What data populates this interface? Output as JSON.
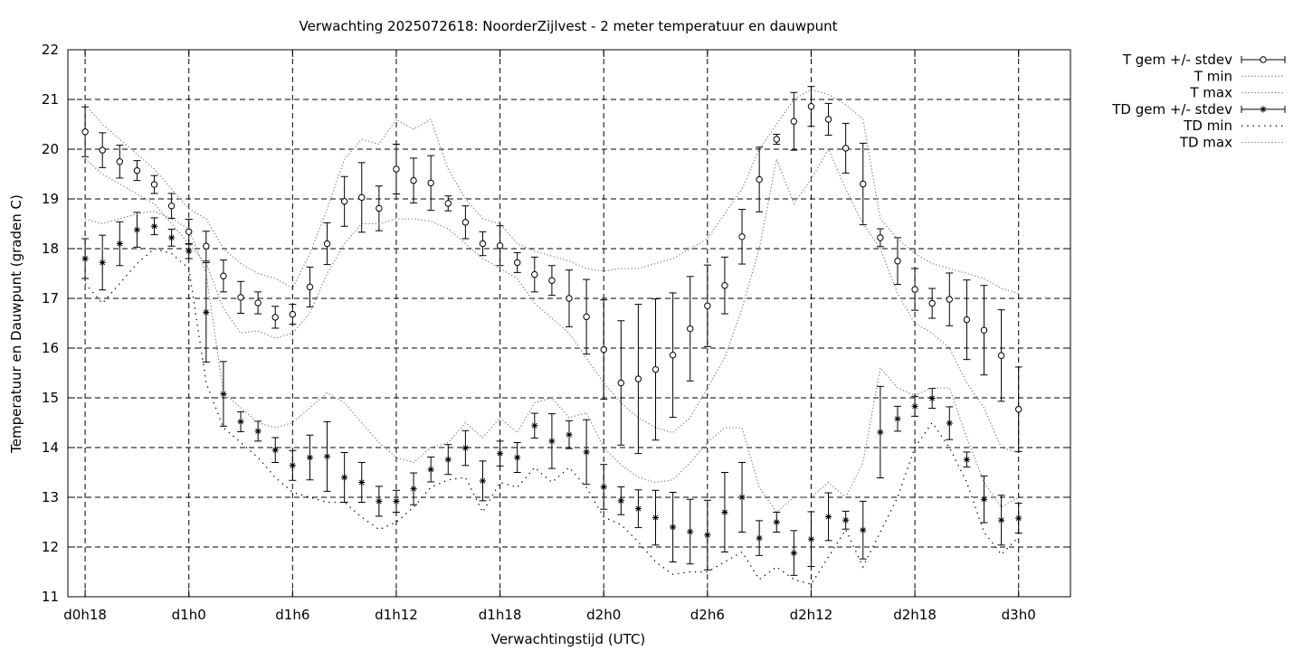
{
  "chart_data": {
    "type": "line",
    "title": "Verwachting 2025072618: NoorderZijlvest - 2 meter temperatuur en dauwpunt",
    "xlabel": "Verwachtingstijd (UTC)",
    "ylabel": "Temperatuur en Dauwpunt (graden C)",
    "xlim": [
      -1,
      57
    ],
    "ylim": [
      11,
      22
    ],
    "grid": true,
    "legend_position": "outside-top-right",
    "x_ticks": [
      {
        "x": 0,
        "label": "d0h18"
      },
      {
        "x": 6,
        "label": "d1h0"
      },
      {
        "x": 12,
        "label": "d1h6"
      },
      {
        "x": 18,
        "label": "d1h12"
      },
      {
        "x": 24,
        "label": "d1h18"
      },
      {
        "x": 30,
        "label": "d2h0"
      },
      {
        "x": 36,
        "label": "d2h6"
      },
      {
        "x": 42,
        "label": "d2h12"
      },
      {
        "x": 48,
        "label": "d2h18"
      },
      {
        "x": 54,
        "label": "d3h0"
      }
    ],
    "y_ticks": [
      11,
      12,
      13,
      14,
      15,
      16,
      17,
      18,
      19,
      20,
      21,
      22
    ],
    "series": [
      {
        "name": "T gem +/- stdev",
        "style": "errorbars-circle",
        "values": [
          20.35,
          19.98,
          19.75,
          19.57,
          19.29,
          18.86,
          18.34,
          18.05,
          17.45,
          17.02,
          16.91,
          16.62,
          16.68,
          17.23,
          18.1,
          18.95,
          19.03,
          18.81,
          19.6,
          19.37,
          19.32,
          18.91,
          18.53,
          18.1,
          18.06,
          17.72,
          17.48,
          17.36,
          17.0,
          16.63,
          15.97,
          15.3,
          15.38,
          15.57,
          15.86,
          16.39,
          16.85,
          17.26,
          18.24,
          19.39,
          20.2,
          20.56,
          20.86,
          20.6,
          20.02,
          19.3,
          18.22,
          17.75,
          17.18,
          16.9,
          16.98,
          16.57,
          16.36,
          15.85,
          14.77
        ],
        "errors": [
          0.5,
          0.35,
          0.33,
          0.2,
          0.18,
          0.25,
          0.25,
          0.3,
          0.32,
          0.32,
          0.22,
          0.22,
          0.2,
          0.4,
          0.42,
          0.5,
          0.7,
          0.45,
          0.5,
          0.45,
          0.55,
          0.15,
          0.33,
          0.24,
          0.4,
          0.2,
          0.35,
          0.3,
          0.57,
          0.75,
          1.0,
          1.25,
          1.5,
          1.42,
          1.25,
          1.05,
          0.82,
          0.57,
          0.55,
          0.65,
          0.1,
          0.58,
          0.4,
          0.32,
          0.5,
          0.82,
          0.18,
          0.47,
          0.42,
          0.3,
          0.53,
          0.8,
          0.9,
          0.92,
          0.85
        ]
      },
      {
        "name": "T min",
        "style": "dotted",
        "values": [
          19.8,
          19.5,
          19.3,
          19.1,
          18.9,
          18.5,
          18.1,
          17.7,
          16.8,
          16.3,
          16.35,
          16.2,
          16.3,
          16.7,
          17.5,
          18.1,
          18.5,
          18.5,
          18.6,
          18.6,
          18.55,
          18.4,
          18.1,
          17.8,
          17.6,
          17.4,
          16.9,
          16.6,
          16.3,
          15.8,
          15.3,
          14.9,
          14.6,
          14.4,
          14.3,
          14.6,
          15.2,
          15.8,
          16.8,
          18.0,
          19.8,
          18.9,
          19.4,
          20.0,
          19.2,
          18.5,
          18.0,
          17.1,
          16.5,
          16.3,
          16.0,
          15.3,
          14.8,
          14.0,
          13.9
        ]
      },
      {
        "name": "T max",
        "style": "dotted",
        "values": [
          20.9,
          20.5,
          20.2,
          19.9,
          19.6,
          19.2,
          18.8,
          18.6,
          18.0,
          17.7,
          17.5,
          17.4,
          17.2,
          17.9,
          18.8,
          19.8,
          20.2,
          20.1,
          20.6,
          20.4,
          20.6,
          19.6,
          19.0,
          18.6,
          18.5,
          18.1,
          17.95,
          17.85,
          17.75,
          17.6,
          17.55,
          17.6,
          17.6,
          17.7,
          17.8,
          18.0,
          18.2,
          18.7,
          19.2,
          20.0,
          20.5,
          21.0,
          21.2,
          21.1,
          20.9,
          20.6,
          18.6,
          18.2,
          17.9,
          17.7,
          17.6,
          17.5,
          17.4,
          17.2,
          17.1
        ]
      },
      {
        "name": "TD gem +/- stdev",
        "style": "errorbars-star",
        "values": [
          17.8,
          17.72,
          18.1,
          18.38,
          18.45,
          18.22,
          17.95,
          16.72,
          15.08,
          14.52,
          14.33,
          13.95,
          13.64,
          13.8,
          13.82,
          13.4,
          13.3,
          12.92,
          12.92,
          13.17,
          13.56,
          13.76,
          13.99,
          13.33,
          13.88,
          13.8,
          14.44,
          14.13,
          14.26,
          13.91,
          13.21,
          12.93,
          12.77,
          12.59,
          12.4,
          12.31,
          12.24,
          12.7,
          13.0,
          12.18,
          12.5,
          11.88,
          12.16,
          12.61,
          12.54,
          12.34,
          14.31,
          14.58,
          14.83,
          14.99,
          14.49,
          13.76,
          12.96,
          12.54,
          12.58
        ],
        "errors": [
          0.4,
          0.55,
          0.44,
          0.35,
          0.17,
          0.17,
          0.15,
          1.0,
          0.65,
          0.2,
          0.2,
          0.25,
          0.3,
          0.45,
          0.7,
          0.5,
          0.4,
          0.3,
          0.22,
          0.32,
          0.25,
          0.3,
          0.35,
          0.4,
          0.25,
          0.3,
          0.25,
          0.55,
          0.28,
          0.65,
          0.45,
          0.28,
          0.38,
          0.55,
          0.7,
          0.65,
          0.7,
          0.8,
          0.7,
          0.35,
          0.2,
          0.45,
          0.55,
          0.48,
          0.18,
          0.58,
          0.92,
          0.25,
          0.2,
          0.2,
          0.33,
          0.15,
          0.47,
          0.5,
          0.3
        ]
      },
      {
        "name": "TD min",
        "style": "dotted-sparse",
        "values": [
          17.3,
          16.9,
          17.3,
          17.7,
          18.0,
          17.9,
          17.6,
          15.3,
          14.4,
          14.1,
          13.8,
          13.4,
          13.1,
          13.0,
          12.9,
          12.9,
          12.6,
          12.35,
          12.5,
          12.8,
          13.2,
          13.35,
          13.4,
          12.7,
          13.3,
          13.2,
          13.6,
          13.3,
          13.6,
          13.2,
          12.6,
          12.45,
          12.1,
          11.7,
          11.45,
          11.5,
          11.5,
          11.7,
          11.9,
          11.35,
          11.6,
          11.35,
          11.25,
          11.8,
          12.35,
          11.6,
          12.3,
          13.0,
          14.0,
          14.5,
          14.0,
          13.3,
          12.3,
          11.85,
          12.2
        ]
      },
      {
        "name": "TD max",
        "style": "dotted",
        "values": [
          18.6,
          18.5,
          18.6,
          18.7,
          18.75,
          18.6,
          18.4,
          17.5,
          15.1,
          14.8,
          14.5,
          14.4,
          14.5,
          14.8,
          15.1,
          14.9,
          14.5,
          14.1,
          13.8,
          13.7,
          14.0,
          14.1,
          14.5,
          14.2,
          14.6,
          14.3,
          14.9,
          15.0,
          14.6,
          14.7,
          14.0,
          13.65,
          13.4,
          13.3,
          13.35,
          13.7,
          14.1,
          14.4,
          14.4,
          13.2,
          12.7,
          13.0,
          13.0,
          13.3,
          13.0,
          13.7,
          15.6,
          15.2,
          15.05,
          15.2,
          15.2,
          14.2,
          13.3,
          12.8,
          13.0
        ]
      }
    ]
  }
}
